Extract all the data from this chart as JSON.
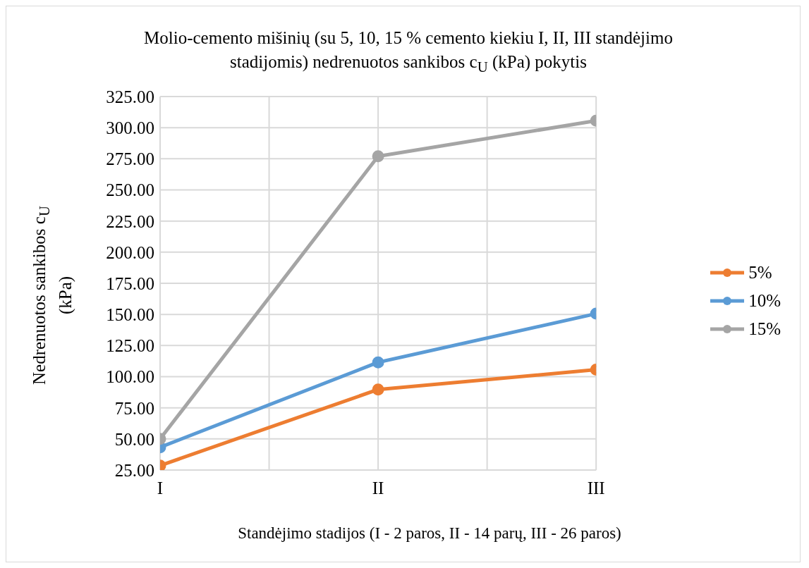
{
  "chart_data": {
    "type": "line",
    "title": "Molio-cemento mišinių (su 5, 10, 15 % cemento kiekiu I, II, III standėjimo stadijomis) nedrenuotos sankibos c$_{U}$ (kPa) pokytis",
    "xlabel": "Standėjimo stadijos (I - 2 paros, II - 14 parų, III - 26 paros)",
    "ylabel": "Nedrenuotos sankibos c$_{U}$ (kPa)",
    "categories": [
      "I",
      "II",
      "III"
    ],
    "series": [
      {
        "name": "5%",
        "color": "#ed7d31",
        "values": [
          28.6,
          89.7,
          105.6
        ]
      },
      {
        "name": "10%",
        "color": "#5b9bd5",
        "values": [
          43.3,
          111.5,
          150.6
        ]
      },
      {
        "name": "15%",
        "color": "#a5a5a5",
        "values": [
          50,
          277,
          305.6
        ]
      }
    ],
    "ylim": [
      25,
      325
    ],
    "yticks": [
      {
        "value": 25,
        "label": "25.00"
      },
      {
        "value": 50,
        "label": "50.00"
      },
      {
        "value": 75,
        "label": "75.00"
      },
      {
        "value": 100,
        "label": "100.00"
      },
      {
        "value": 125,
        "label": "125.00"
      },
      {
        "value": 150,
        "label": "150.00"
      },
      {
        "value": 175,
        "label": "175.00"
      },
      {
        "value": 200,
        "label": "200.00"
      },
      {
        "value": 225,
        "label": "225.00"
      },
      {
        "value": 250,
        "label": "250.00"
      },
      {
        "value": 275,
        "label": "275.00"
      },
      {
        "value": 300,
        "label": "300.00"
      },
      {
        "value": 325,
        "label": "325.00"
      }
    ],
    "grid": true,
    "legend": "right",
    "marker": "circle",
    "line_style": "solid"
  }
}
